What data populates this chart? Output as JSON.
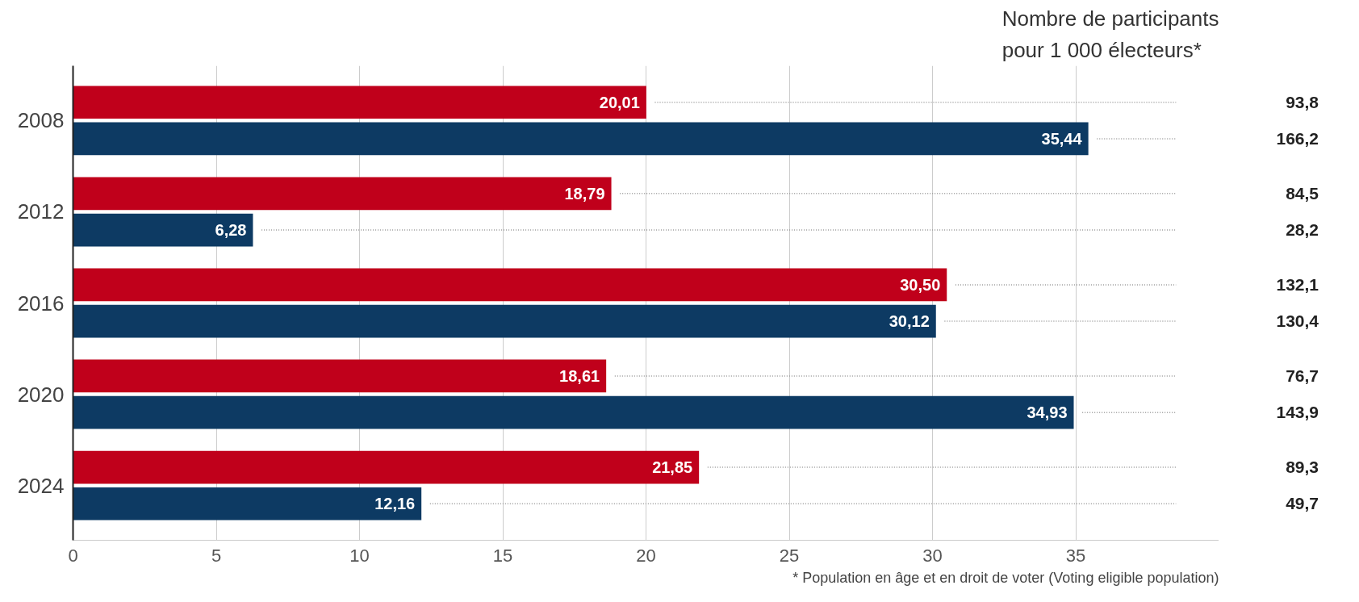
{
  "chart_data": {
    "type": "bar",
    "orientation": "horizontal",
    "categories": [
      "2008",
      "2012",
      "2016",
      "2020",
      "2024"
    ],
    "series": [
      {
        "color": "#c0001b",
        "values": [
          20.01,
          18.79,
          30.5,
          18.61,
          21.85
        ],
        "value_labels": [
          "20,01",
          "18,79",
          "30,50",
          "18,61",
          "21,85"
        ]
      },
      {
        "color": "#0d3a63",
        "values": [
          35.44,
          6.28,
          30.12,
          34.93,
          12.16
        ],
        "value_labels": [
          "35,44",
          "6,28",
          "30,12",
          "34,93",
          "12,16"
        ]
      }
    ],
    "xlim": [
      0,
      40
    ],
    "xticks": [
      0,
      5,
      10,
      15,
      20,
      25,
      30,
      35
    ],
    "grid": "x",
    "annotations": [
      "Nombre de participants\npour 1 000 électeurs*",
      "93,8",
      "166,2",
      "84,5",
      "28,2",
      "132,1",
      "130,4",
      "76,7",
      "143,9",
      "89,3",
      "49,7",
      "* Population en âge et en droit de voter (Voting eligible population)"
    ]
  }
}
